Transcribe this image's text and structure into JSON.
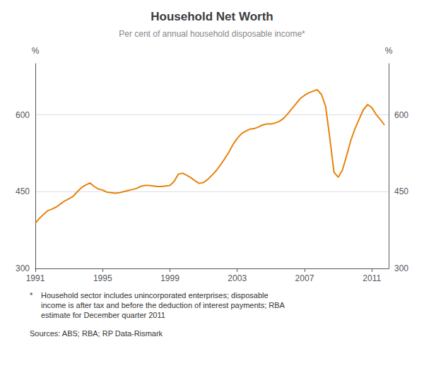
{
  "chart_data": {
    "type": "line",
    "title": "Household Net Worth",
    "subtitle": "Per cent of annual household disposable income*",
    "ylabel": "%",
    "y2label": "%",
    "color": "#E8820C",
    "grid": true,
    "xlim": [
      1991.0,
      2012.0
    ],
    "xticks": [
      1991,
      1995,
      1999,
      2003,
      2007,
      2011
    ],
    "ylim": [
      300,
      700
    ],
    "yticks": [
      300,
      450,
      600
    ],
    "y2lim": [
      300,
      700
    ],
    "y2ticks": [
      300,
      450,
      600
    ],
    "annotations": [
      "*",
      "Household sector includes unincorporated enterprises; disposable",
      "income is after tax and before the deduction of interest payments; RBA",
      "estimate for December quarter 2011",
      "Sources: ABS; RBA; RP Data-Rismark"
    ],
    "x": [
      1991.0,
      1991.25,
      1991.5,
      1991.75,
      1992.0,
      1992.25,
      1992.5,
      1992.75,
      1993.0,
      1993.25,
      1993.5,
      1993.75,
      1994.0,
      1994.25,
      1994.5,
      1994.75,
      1995.0,
      1995.25,
      1995.5,
      1995.75,
      1996.0,
      1996.25,
      1996.5,
      1996.75,
      1997.0,
      1997.25,
      1997.5,
      1997.75,
      1998.0,
      1998.25,
      1998.5,
      1998.75,
      1999.0,
      1999.25,
      1999.5,
      1999.75,
      2000.0,
      2000.25,
      2000.5,
      2000.75,
      2001.0,
      2001.25,
      2001.5,
      2001.75,
      2002.0,
      2002.25,
      2002.5,
      2002.75,
      2003.0,
      2003.25,
      2003.5,
      2003.75,
      2004.0,
      2004.25,
      2004.5,
      2004.75,
      2005.0,
      2005.25,
      2005.5,
      2005.75,
      2006.0,
      2006.25,
      2006.5,
      2006.75,
      2007.0,
      2007.25,
      2007.5,
      2007.75,
      2008.0,
      2008.25,
      2008.5,
      2008.75,
      2009.0,
      2009.25,
      2009.5,
      2009.75,
      2010.0,
      2010.25,
      2010.5,
      2010.75,
      2011.0,
      2011.25,
      2011.5,
      2011.75
    ],
    "values": [
      388,
      398,
      406,
      413,
      416,
      420,
      426,
      432,
      436,
      441,
      450,
      458,
      463,
      467,
      460,
      455,
      453,
      449,
      448,
      447,
      448,
      450,
      452,
      454,
      456,
      460,
      462,
      462,
      461,
      460,
      460,
      461,
      462,
      470,
      484,
      486,
      482,
      477,
      471,
      466,
      468,
      474,
      482,
      491,
      502,
      514,
      527,
      542,
      554,
      563,
      568,
      572,
      573,
      576,
      580,
      582,
      582,
      584,
      587,
      593,
      602,
      612,
      622,
      632,
      638,
      643,
      646,
      649,
      640,
      617,
      555,
      488,
      478,
      492,
      520,
      550,
      573,
      592,
      610,
      620,
      614,
      601,
      591,
      580
    ]
  }
}
